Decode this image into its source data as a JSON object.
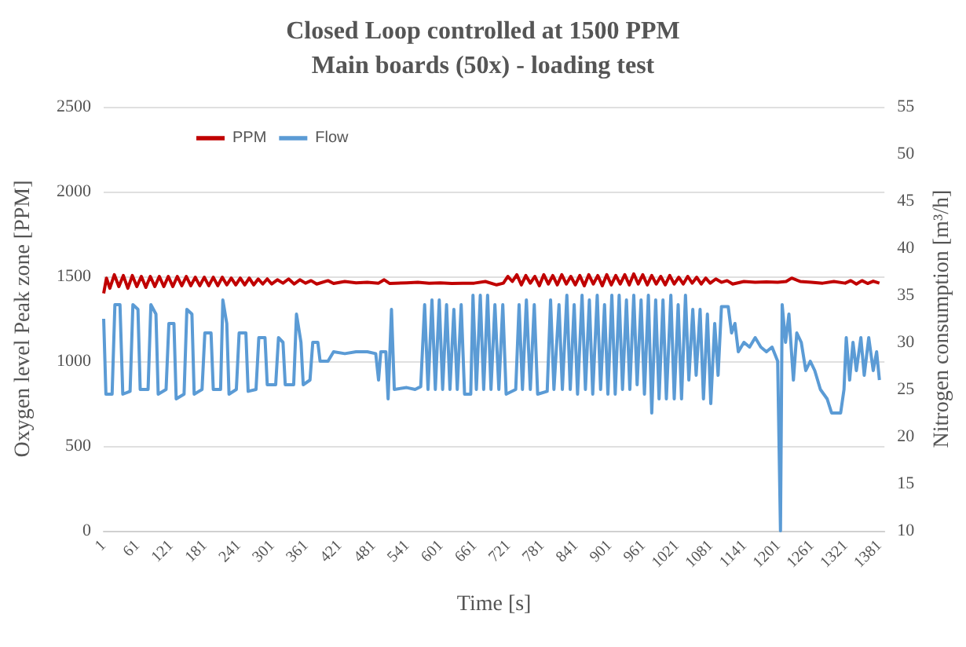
{
  "chart_data": {
    "type": "line",
    "title": "Closed Loop controlled at 1500 PPM\nMain boards (50x) - loading test",
    "xlabel": "Time [s]",
    "ylabel": "Oxygen level Peak zone [PPM]",
    "y2label": "Nitrogen consumption [m³/h]",
    "xlim": [
      1,
      1390
    ],
    "xticks": [
      1,
      61,
      121,
      181,
      241,
      301,
      361,
      421,
      481,
      541,
      601,
      661,
      721,
      781,
      841,
      901,
      961,
      1021,
      1081,
      1141,
      1201,
      1261,
      1321,
      1381
    ],
    "ylim": [
      0,
      2500
    ],
    "yticks": [
      0,
      500,
      1000,
      1500,
      2000,
      2500
    ],
    "y2lim": [
      10,
      55
    ],
    "y2ticks": [
      10,
      15,
      20,
      25,
      30,
      35,
      40,
      45,
      50,
      55
    ],
    "grid": "y",
    "legend": "top left",
    "marker": "none",
    "line_style": "solid",
    "series": [
      {
        "name": "PPM",
        "color": "#c00000",
        "x": [
          1,
          6,
          12,
          20,
          28,
          36,
          44,
          52,
          60,
          68,
          76,
          84,
          92,
          100,
          108,
          116,
          124,
          132,
          140,
          148,
          156,
          164,
          172,
          180,
          188,
          196,
          204,
          212,
          220,
          228,
          236,
          244,
          252,
          260,
          268,
          276,
          284,
          292,
          300,
          310,
          320,
          330,
          340,
          350,
          360,
          370,
          380,
          400,
          410,
          430,
          450,
          470,
          490,
          500,
          510,
          540,
          560,
          580,
          600,
          620,
          640,
          660,
          680,
          700,
          712,
          720,
          728,
          736,
          744,
          752,
          760,
          768,
          776,
          784,
          792,
          800,
          808,
          816,
          824,
          832,
          840,
          848,
          856,
          864,
          872,
          880,
          888,
          896,
          904,
          912,
          920,
          928,
          936,
          944,
          952,
          960,
          968,
          976,
          984,
          992,
          1000,
          1008,
          1016,
          1024,
          1032,
          1040,
          1048,
          1056,
          1064,
          1072,
          1080,
          1090,
          1100,
          1110,
          1120,
          1140,
          1160,
          1180,
          1200,
          1215,
          1225,
          1240,
          1260,
          1280,
          1300,
          1320,
          1330,
          1340,
          1350,
          1360,
          1370,
          1381
        ],
        "values": [
          1400,
          1490,
          1430,
          1510,
          1440,
          1505,
          1430,
          1505,
          1440,
          1500,
          1435,
          1500,
          1440,
          1500,
          1440,
          1500,
          1440,
          1500,
          1445,
          1500,
          1445,
          1495,
          1445,
          1495,
          1445,
          1495,
          1445,
          1495,
          1450,
          1490,
          1450,
          1490,
          1450,
          1490,
          1450,
          1485,
          1455,
          1485,
          1455,
          1480,
          1460,
          1485,
          1455,
          1480,
          1460,
          1475,
          1455,
          1475,
          1458,
          1470,
          1462,
          1465,
          1460,
          1480,
          1458,
          1462,
          1465,
          1460,
          1462,
          1458,
          1460,
          1460,
          1470,
          1450,
          1460,
          1500,
          1470,
          1510,
          1450,
          1505,
          1460,
          1500,
          1445,
          1510,
          1455,
          1505,
          1450,
          1510,
          1455,
          1500,
          1450,
          1505,
          1445,
          1510,
          1455,
          1505,
          1445,
          1510,
          1450,
          1505,
          1455,
          1510,
          1450,
          1515,
          1455,
          1510,
          1450,
          1505,
          1455,
          1500,
          1450,
          1505,
          1455,
          1495,
          1455,
          1500,
          1460,
          1495,
          1455,
          1490,
          1460,
          1485,
          1465,
          1475,
          1455,
          1470,
          1465,
          1468,
          1465,
          1470,
          1490,
          1470,
          1465,
          1460,
          1470,
          1460,
          1475,
          1455,
          1475,
          1458,
          1472,
          1460
        ]
      },
      {
        "name": "Flow",
        "color": "#5b9bd5",
        "axis": "y2",
        "x": [
          1,
          5,
          16,
          21,
          30,
          35,
          48,
          53,
          62,
          66,
          80,
          85,
          94,
          98,
          112,
          117,
          126,
          130,
          144,
          149,
          158,
          162,
          176,
          181,
          192,
          196,
          209,
          213,
          220,
          224,
          237,
          242,
          254,
          258,
          272,
          277,
          288,
          292,
          307,
          312,
          320,
          324,
          339,
          344,
          352,
          356,
          368,
          373,
          382,
          386,
          400,
          410,
          430,
          450,
          470,
          485,
          490,
          494,
          503,
          507,
          513,
          518,
          540,
          555,
          565,
          572,
          578,
          585,
          591,
          598,
          604,
          611,
          617,
          624,
          630,
          637,
          643,
          654,
          658,
          664,
          671,
          677,
          684,
          690,
          697,
          704,
          711,
          717,
          734,
          740,
          746,
          753,
          760,
          767,
          773,
          790,
          796,
          802,
          811,
          817,
          825,
          831,
          838,
          844,
          852,
          858,
          865,
          871,
          879,
          885,
          892,
          898,
          905,
          911,
          918,
          924,
          931,
          937,
          944,
          950,
          957,
          963,
          970,
          976,
          983,
          989,
          996,
          1002,
          1010,
          1016,
          1023,
          1029,
          1036,
          1042,
          1049,
          1055,
          1062,
          1068,
          1075,
          1081,
          1088,
          1094,
          1100,
          1112,
          1118,
          1124,
          1130,
          1140,
          1150,
          1160,
          1170,
          1180,
          1190,
          1200,
          1205,
          1208,
          1214,
          1220,
          1228,
          1234,
          1242,
          1250,
          1258,
          1266,
          1276,
          1288,
          1296,
          1312,
          1318,
          1322,
          1328,
          1334,
          1340,
          1348,
          1354,
          1362,
          1370,
          1376,
          1381
        ],
        "values": [
          32.5,
          24.5,
          24.5,
          34,
          34,
          24.5,
          24.8,
          34,
          33.5,
          25,
          25,
          34,
          33,
          24.5,
          25,
          32,
          32,
          24,
          24.5,
          33.5,
          33,
          24.5,
          25,
          31,
          31,
          25,
          25,
          34.5,
          32,
          24.5,
          25,
          31,
          31,
          24.8,
          25,
          30.5,
          30.5,
          25.5,
          25.5,
          30.5,
          30,
          25.5,
          25.5,
          33,
          30,
          25.5,
          26,
          30,
          30,
          28,
          28,
          29,
          28.8,
          29,
          29,
          28.8,
          26,
          29,
          29,
          24,
          33.5,
          25,
          25.2,
          25,
          25.3,
          34,
          25,
          34.5,
          25,
          34.5,
          25,
          34,
          25,
          33.5,
          25,
          34,
          24.5,
          24.5,
          35,
          25,
          35,
          25,
          35,
          25,
          34,
          25,
          34,
          24.5,
          25,
          34,
          25,
          34.5,
          25,
          34,
          24.5,
          24.8,
          34.5,
          25,
          34,
          25,
          35,
          25,
          34,
          24.5,
          35,
          25,
          34.5,
          24.5,
          35,
          25,
          34,
          24.5,
          35,
          24.5,
          35,
          25,
          34.5,
          25,
          35,
          25.5,
          34.5,
          24.5,
          35,
          22.5,
          34.5,
          24,
          34.5,
          24,
          35,
          24,
          34,
          24,
          35,
          26,
          33.5,
          26.5,
          33.5,
          24,
          33,
          23.5,
          32,
          26.5,
          33.8,
          33.8,
          31,
          32,
          29,
          30,
          29.5,
          30.5,
          29.5,
          29,
          29.5,
          28,
          10,
          34,
          30,
          33,
          26,
          31,
          30,
          27,
          28,
          27,
          25,
          24,
          22.5,
          22.5,
          25,
          30.5,
          26,
          30,
          27,
          30.5,
          26.5,
          30.5,
          27,
          29,
          26
        ]
      }
    ]
  }
}
